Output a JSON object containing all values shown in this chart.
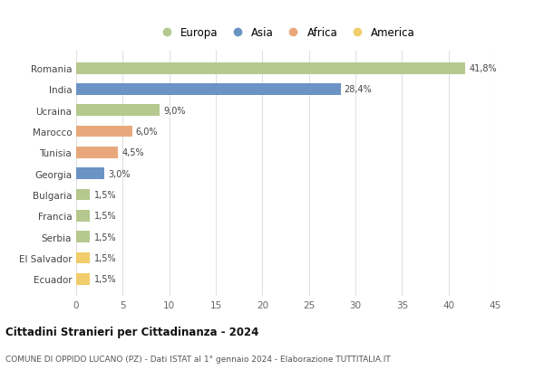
{
  "countries": [
    "Romania",
    "India",
    "Ucraina",
    "Marocco",
    "Tunisia",
    "Georgia",
    "Bulgaria",
    "Francia",
    "Serbia",
    "El Salvador",
    "Ecuador"
  ],
  "values": [
    41.8,
    28.4,
    9.0,
    6.0,
    4.5,
    3.0,
    1.5,
    1.5,
    1.5,
    1.5,
    1.5
  ],
  "labels": [
    "41,8%",
    "28,4%",
    "9,0%",
    "6,0%",
    "4,5%",
    "3,0%",
    "1,5%",
    "1,5%",
    "1,5%",
    "1,5%",
    "1,5%"
  ],
  "continents": [
    "Europa",
    "Asia",
    "Europa",
    "Africa",
    "Africa",
    "Asia",
    "Europa",
    "Europa",
    "Europa",
    "America",
    "America"
  ],
  "colors": {
    "Europa": "#b5c98e",
    "Asia": "#6b93c4",
    "Africa": "#e8a87c",
    "America": "#f0cc6a"
  },
  "legend_order": [
    "Europa",
    "Asia",
    "Africa",
    "America"
  ],
  "xlim": [
    0,
    45
  ],
  "xticks": [
    0,
    5,
    10,
    15,
    20,
    25,
    30,
    35,
    40,
    45
  ],
  "title": "Cittadini Stranieri per Cittadinanza - 2024",
  "subtitle": "COMUNE DI OPPIDO LUCANO (PZ) - Dati ISTAT al 1° gennaio 2024 - Elaborazione TUTTITALIA.IT",
  "bg_color": "#ffffff",
  "grid_color": "#e0e0e0"
}
